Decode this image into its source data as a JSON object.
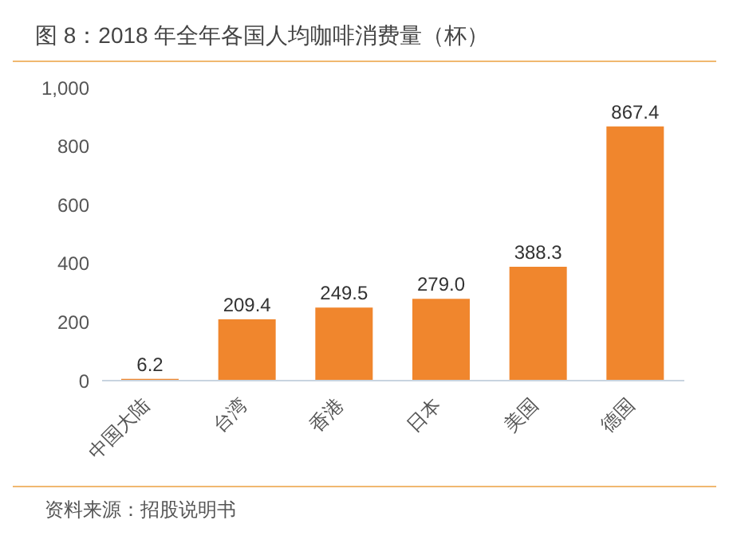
{
  "chart_data": {
    "type": "bar",
    "title": "图 8：2018 年全年各国人均咖啡消费量（杯）",
    "categories": [
      "中国大陆",
      "台湾",
      "香港",
      "日本",
      "美国",
      "德国"
    ],
    "values": [
      6.2,
      209.4,
      249.5,
      279.0,
      388.3,
      867.4
    ],
    "color": "#f0862d",
    "ylim": [
      0,
      1000
    ],
    "yticks": [
      0,
      200,
      400,
      600,
      800,
      {
        "value": 1000,
        "label": "1,000"
      }
    ],
    "grid": false,
    "value_labels": [
      "6.2",
      "209.4",
      "249.5",
      "279.0",
      "388.3",
      "867.4"
    ],
    "annotations": [
      "资料来源：招股说明书"
    ]
  }
}
